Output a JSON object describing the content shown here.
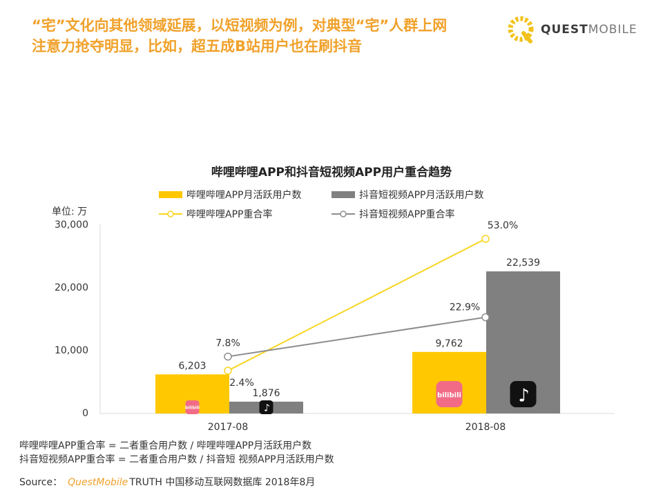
{
  "headline": {
    "line1": "“宅”文化向其他领域延展，以短视频为例，对典型“宅”人群上网",
    "line2": "注意力抢夺明显，比如，超五成B站用户也在刷抖音"
  },
  "logo": {
    "text_a": "QUEST",
    "text_b": "MOBILE",
    "icon": "questmobile-logo-icon"
  },
  "colors": {
    "accent": "#f0a12a",
    "bilibili_bar": "#ffc800",
    "douyin_bar": "#808080",
    "bilibili_line": "#f7d51e",
    "douyin_line": "#8c8c8c"
  },
  "chart_data": {
    "type": "bar",
    "title": "哔哩哔哩APP和抖音短视频APP用户重合趋势",
    "unit_label": "单位: 万",
    "categories": [
      "2017-08",
      "2018-08"
    ],
    "y_ticks": [
      "30,000",
      "20,000",
      "10,000",
      "0"
    ],
    "ylim": [
      0,
      30000
    ],
    "series": [
      {
        "name": "哔哩哔哩APP月活跃用户数",
        "kind": "bar",
        "color": "#ffc800",
        "values": [
          6203,
          9762
        ],
        "labels": [
          "6,203",
          "9,762"
        ],
        "icon": "bilibili-icon"
      },
      {
        "name": "抖音短视频APP月活跃用户数",
        "kind": "bar",
        "color": "#808080",
        "values": [
          1876,
          22539
        ],
        "labels": [
          "1,876",
          "22,539"
        ],
        "icon": "douyin-icon"
      },
      {
        "name": "哔哩哔哩APP重合率",
        "kind": "line",
        "color": "#f7d51e",
        "values": [
          2.4,
          53.0
        ],
        "labels": [
          "2.4%",
          "53.0%"
        ]
      },
      {
        "name": "抖音短视频APP重合率",
        "kind": "line",
        "color": "#8c8c8c",
        "values": [
          7.8,
          22.9
        ],
        "labels": [
          "7.8%",
          "22.9%"
        ]
      }
    ],
    "legend_position": "top",
    "grid": false
  },
  "notes": {
    "line1": "哔哩哔哩APP重合率 = 二者重合用户数 / 哔哩哔哩APP月活跃用户数",
    "line2": "抖音短视频APP重合率 = 二者重合用户数 / 抖音短 视频APP月活跃用户数"
  },
  "source": {
    "prefix": "Source：",
    "brand": "QuestMobile",
    "text": "TRUTH 中国移动互联网数据库 2018年8月"
  }
}
